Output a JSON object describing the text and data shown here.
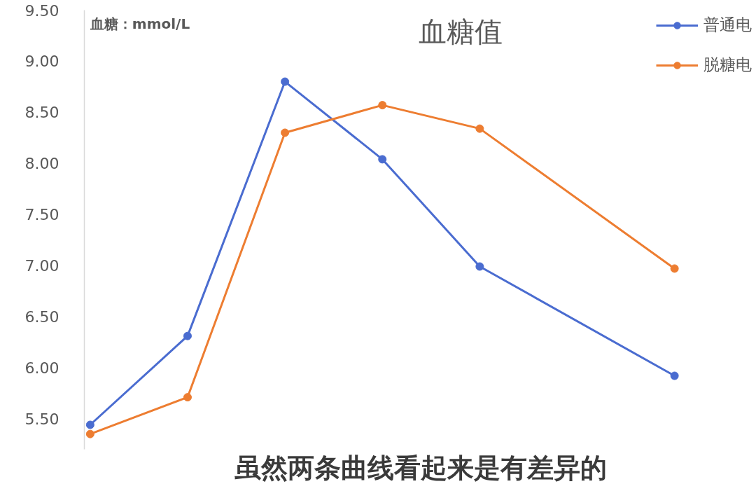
{
  "chart_data": {
    "type": "line",
    "title": "血糖值",
    "ylabel": "血糖：mmol/L",
    "categories": [
      null,
      null,
      null,
      null,
      null,
      null,
      null
    ],
    "series": [
      {
        "name": "普通电",
        "color": "#4a6cd0",
        "values": [
          5.44,
          6.31,
          8.8,
          8.04,
          6.99,
          null,
          5.92
        ]
      },
      {
        "name": "脱糖电",
        "color": "#ed7d31",
        "values": [
          5.35,
          5.71,
          8.3,
          8.57,
          8.34,
          null,
          6.97
        ]
      }
    ],
    "ylim": [
      5.2,
      9.5
    ],
    "yticks": [
      {
        "value": 5.5,
        "label": "5.50"
      },
      {
        "value": 6,
        "label": "6.00"
      },
      {
        "value": 6.5,
        "label": "6.50"
      },
      {
        "value": 7,
        "label": "7.00"
      },
      {
        "value": 7.5,
        "label": "7.50"
      },
      {
        "value": 8,
        "label": "8.00"
      },
      {
        "value": 8.5,
        "label": "8.50"
      },
      {
        "value": 9,
        "label": "9.00"
      },
      {
        "value": 9.5,
        "label": "9.50"
      }
    ],
    "tick_labels": "y",
    "legend": "top right",
    "marker": "circle",
    "line_style": "solid",
    "annotations": [
      "虽然两条曲线看起来是有差异的"
    ]
  }
}
